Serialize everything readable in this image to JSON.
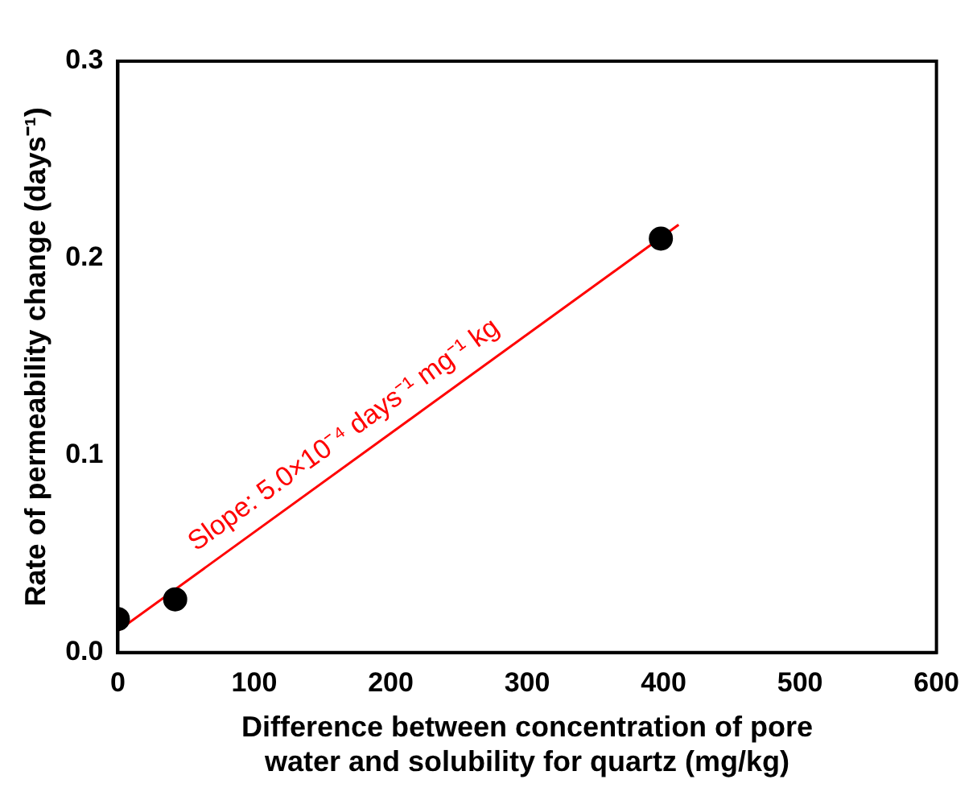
{
  "chart_data": {
    "type": "scatter",
    "xlabel": "Difference between concentration of pore water and solubility for quartz (mg/kg)",
    "ylabel": "Rate of permeability change (days⁻¹)",
    "x": [
      0,
      42,
      398
    ],
    "series": [
      {
        "color": "#000000",
        "values": [
          0.017,
          0.027,
          0.21
        ],
        "marker": "circle"
      },
      {
        "type": "line",
        "color": "#ff0000",
        "x": [
          0,
          411
        ],
        "values": [
          0.011,
          0.217
        ],
        "marker": "none",
        "line_style": "solid"
      }
    ],
    "annotations": [
      "Slope: 5.0×10⁻⁴ days⁻¹ mg⁻¹ kg"
    ],
    "xlim": [
      0,
      600
    ],
    "xticks": [
      0,
      100,
      200,
      300,
      400,
      500,
      600
    ],
    "ylim": [
      0,
      0.3
    ],
    "yticks": [
      {
        "value": 0,
        "label": "0.0"
      },
      {
        "value": 0.1,
        "label": "0.1"
      },
      {
        "value": 0.2,
        "label": "0.2"
      },
      {
        "value": 0.3,
        "label": "0.3"
      }
    ],
    "grid": false,
    "legend": false
  }
}
